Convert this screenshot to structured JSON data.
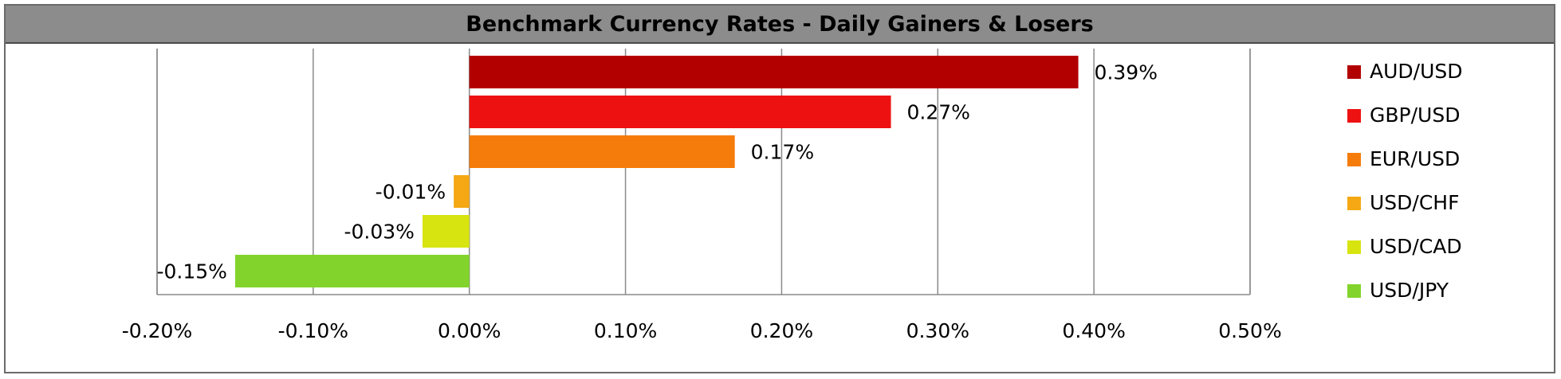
{
  "chart_data": {
    "type": "bar",
    "orientation": "horizontal",
    "title": "Benchmark Currency Rates - Daily Gainers & Losers",
    "categories": [
      "AUD/USD",
      "GBP/USD",
      "EUR/USD",
      "USD/CHF",
      "USD/CAD",
      "USD/JPY"
    ],
    "values": [
      0.39,
      0.27,
      0.17,
      -0.01,
      -0.03,
      -0.15
    ],
    "data_labels": [
      "0.39%",
      "0.27%",
      "0.17%",
      "-0.01%",
      "-0.03%",
      "-0.15%"
    ],
    "colors": [
      "#b20000",
      "#ee1111",
      "#f57c0a",
      "#f5a814",
      "#d7e40f",
      "#82d42c"
    ],
    "xlim": [
      -0.2,
      0.5
    ],
    "xticks": [
      -0.2,
      -0.1,
      0.0,
      0.1,
      0.2,
      0.3,
      0.4,
      0.5
    ],
    "xtick_labels": [
      "-0.20%",
      "-0.10%",
      "0.00%",
      "0.10%",
      "0.20%",
      "0.30%",
      "0.40%",
      "0.50%"
    ],
    "xlabel": "",
    "ylabel": "",
    "grid": "vertical",
    "legend_position": "right"
  }
}
